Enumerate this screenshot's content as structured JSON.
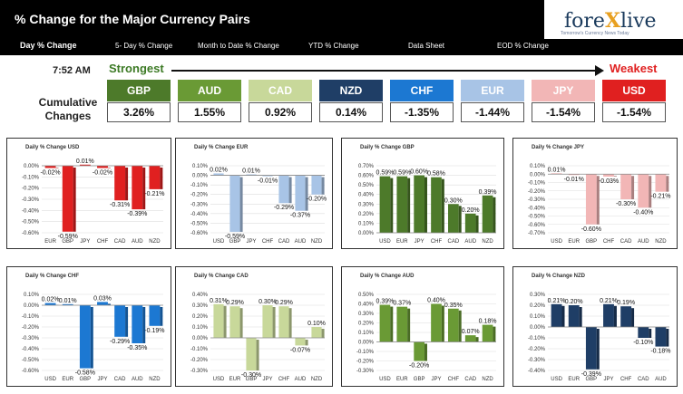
{
  "header": {
    "title": "% Change for the Major Currency Pairs",
    "logo_text_1": "fore",
    "logo_text_x": "X",
    "logo_text_2": "live",
    "logo_tagline": "Tomorrow's Currency News Today"
  },
  "tabs": [
    {
      "label": "Day % Change",
      "active": true
    },
    {
      "label": "5- Day % Change",
      "active": false
    },
    {
      "label": "Month to Date % Change",
      "active": false
    },
    {
      "label": "YTD % Change",
      "active": false
    },
    {
      "label": "Data Sheet",
      "active": false
    },
    {
      "label": "EOD % Change",
      "active": false
    }
  ],
  "summary": {
    "time": "7:52 AM",
    "strongest_label": "Strongest",
    "weakest_label": "Weakest",
    "cumulative_label_1": "Cumulative",
    "cumulative_label_2": "Changes",
    "currencies": [
      {
        "code": "GBP",
        "value": "3.26%",
        "color": "#4d7a2a"
      },
      {
        "code": "AUD",
        "value": "1.55%",
        "color": "#6a9a35"
      },
      {
        "code": "CAD",
        "value": "0.92%",
        "color": "#c8d89a"
      },
      {
        "code": "NZD",
        "value": "0.14%",
        "color": "#1f3e66"
      },
      {
        "code": "CHF",
        "value": "-1.35%",
        "color": "#1c78d2"
      },
      {
        "code": "EUR",
        "value": "-1.44%",
        "color": "#a8c4e6"
      },
      {
        "code": "JPY",
        "value": "-1.54%",
        "color": "#f2b6b6"
      },
      {
        "code": "USD",
        "value": "-1.54%",
        "color": "#e02020"
      }
    ]
  },
  "chart_data": [
    {
      "type": "bar",
      "title": "Daily % Change USD",
      "categories": [
        "EUR",
        "GBP",
        "JPY",
        "CHF",
        "CAD",
        "AUD",
        "NZD"
      ],
      "values": [
        -0.02,
        -0.59,
        0.01,
        -0.02,
        -0.31,
        -0.39,
        -0.21
      ],
      "labels": [
        "-0.02%",
        "-0.59%",
        "0.01%",
        "-0.02%",
        "-0.31%",
        "-0.39%",
        "-0.21%"
      ],
      "ylim": [
        -0.6,
        0.0
      ],
      "yticks": [
        "0.00%",
        "-0.10%",
        "-0.20%",
        "-0.30%",
        "-0.40%",
        "-0.50%",
        "-0.60%"
      ],
      "color": "#e02020",
      "highlight_color": "#e02020"
    },
    {
      "type": "bar",
      "title": "Daily % Change EUR",
      "categories": [
        "USD",
        "GBP",
        "JPY",
        "CHF",
        "CAD",
        "AUD",
        "NZD"
      ],
      "values": [
        0.02,
        -0.59,
        0.01,
        -0.01,
        -0.29,
        -0.37,
        -0.2
      ],
      "labels": [
        "0.02%",
        "-0.59%",
        "0.01%",
        "-0.01%",
        "-0.29%",
        "-0.37%",
        "-0.20%"
      ],
      "ylim": [
        -0.6,
        0.1
      ],
      "yticks": [
        "0.10%",
        "0.00%",
        "-0.10%",
        "-0.20%",
        "-0.30%",
        "-0.40%",
        "-0.50%",
        "-0.60%"
      ],
      "color": "#a8c4e6"
    },
    {
      "type": "bar",
      "title": "Daily % Change GBP",
      "categories": [
        "USD",
        "EUR",
        "JPY",
        "CHF",
        "CAD",
        "AUD",
        "NZD"
      ],
      "values": [
        0.59,
        0.59,
        0.6,
        0.58,
        0.3,
        0.2,
        0.39
      ],
      "labels": [
        "0.59%",
        "0.59%",
        "0.60%",
        "0.58%",
        "0.30%",
        "0.20%",
        "0.39%"
      ],
      "ylim": [
        0.0,
        0.7
      ],
      "yticks": [
        "0.70%",
        "0.60%",
        "0.50%",
        "0.40%",
        "0.30%",
        "0.20%",
        "0.10%",
        "0.00%"
      ],
      "color": "#4d7a2a"
    },
    {
      "type": "bar",
      "title": "Daily % Change JPY",
      "categories": [
        "USD",
        "EUR",
        "GBP",
        "CHF",
        "CAD",
        "AUD",
        "NZD"
      ],
      "values": [
        0.01,
        -0.01,
        -0.6,
        -0.03,
        -0.3,
        -0.4,
        -0.21
      ],
      "labels": [
        "0.01%",
        "-0.01%",
        "-0.60%",
        "-0.03%",
        "-0.30%",
        "-0.40%",
        "-0.21%"
      ],
      "ylim": [
        -0.7,
        0.1
      ],
      "yticks": [
        "0.10%",
        "0.00%",
        "-0.10%",
        "-0.20%",
        "-0.30%",
        "-0.40%",
        "-0.50%",
        "-0.60%",
        "-0.70%"
      ],
      "color": "#f2b6b6"
    },
    {
      "type": "bar",
      "title": "Daily % Change CHF",
      "categories": [
        "USD",
        "EUR",
        "GBP",
        "JPY",
        "CAD",
        "AUD",
        "NZD"
      ],
      "values": [
        0.02,
        0.01,
        -0.58,
        0.03,
        -0.29,
        -0.35,
        -0.19
      ],
      "labels": [
        "0.02%",
        "0.01%",
        "-0.58%",
        "0.03%",
        "-0.29%",
        "-0.35%",
        "-0.19%"
      ],
      "ylim": [
        -0.6,
        0.1
      ],
      "yticks": [
        "0.10%",
        "0.00%",
        "-0.10%",
        "-0.20%",
        "-0.30%",
        "-0.40%",
        "-0.50%",
        "-0.60%"
      ],
      "color": "#1c78d2"
    },
    {
      "type": "bar",
      "title": "Daily % Change CAD",
      "categories": [
        "USD",
        "EUR",
        "GBP",
        "JPY",
        "CHF",
        "AUD",
        "NZD"
      ],
      "values": [
        0.31,
        0.29,
        -0.3,
        0.3,
        0.29,
        -0.07,
        0.1
      ],
      "labels": [
        "0.31%",
        "0.29%",
        "-0.30%",
        "0.30%",
        "0.29%",
        "-0.07%",
        "0.10%"
      ],
      "ylim": [
        -0.3,
        0.4
      ],
      "yticks": [
        "0.40%",
        "0.30%",
        "0.20%",
        "0.10%",
        "0.00%",
        "-0.10%",
        "-0.20%",
        "-0.30%"
      ],
      "color": "#c8d89a"
    },
    {
      "type": "bar",
      "title": "Daily % Change AUD",
      "categories": [
        "USD",
        "EUR",
        "GBP",
        "JPY",
        "CHF",
        "CAD",
        "NZD"
      ],
      "values": [
        0.39,
        0.37,
        -0.2,
        0.4,
        0.35,
        0.07,
        0.18
      ],
      "labels": [
        "0.39%",
        "0.37%",
        "-0.20%",
        "0.40%",
        "0.35%",
        "0.07%",
        "0.18%"
      ],
      "ylim": [
        -0.3,
        0.5
      ],
      "yticks": [
        "0.50%",
        "0.40%",
        "0.30%",
        "0.20%",
        "0.10%",
        "0.00%",
        "-0.10%",
        "-0.20%",
        "-0.30%"
      ],
      "color": "#6a9a35"
    },
    {
      "type": "bar",
      "title": "Daily % Change NZD",
      "categories": [
        "USD",
        "EUR",
        "GBP",
        "JPY",
        "CHF",
        "CAD",
        "AUD"
      ],
      "values": [
        0.21,
        0.2,
        -0.39,
        0.21,
        0.19,
        -0.1,
        -0.18
      ],
      "labels": [
        "0.21%",
        "0.20%",
        "-0.39%",
        "0.21%",
        "0.19%",
        "-0.10%",
        "-0.18%"
      ],
      "ylim": [
        -0.4,
        0.3
      ],
      "yticks": [
        "0.30%",
        "0.20%",
        "0.10%",
        "0.00%",
        "-0.10%",
        "-0.20%",
        "-0.30%",
        "-0.40%"
      ],
      "color": "#1f3e66"
    }
  ]
}
